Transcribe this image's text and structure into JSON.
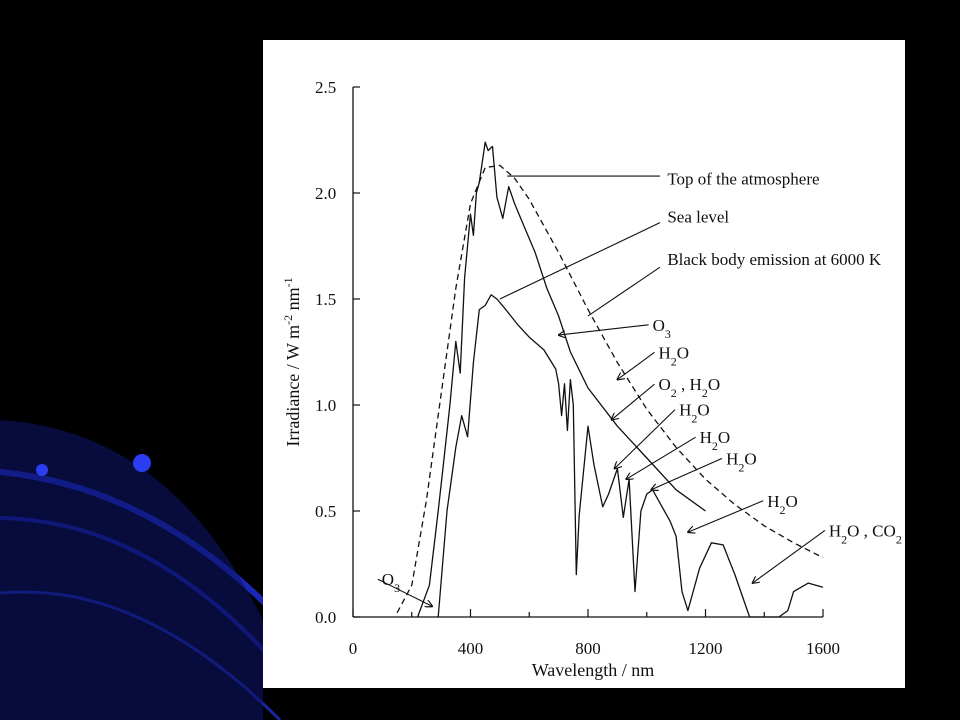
{
  "slide": {
    "background": "#000000",
    "decoration_color": "#1f2fd6"
  },
  "chart_data": {
    "type": "line",
    "title": "",
    "xlabel": "Wavelength / nm",
    "ylabel_parts": [
      "Irradiance / W m",
      "-2",
      " nm",
      "-1"
    ],
    "xlim": [
      0,
      1600
    ],
    "ylim": [
      0,
      2.5
    ],
    "xticks": [
      0,
      400,
      800,
      1200,
      1600
    ],
    "xtick_labels": [
      "0",
      "400",
      "800",
      "1200",
      "1600"
    ],
    "yticks": [
      0,
      0.5,
      1.0,
      1.5,
      2.0,
      2.5
    ],
    "ytick_labels": [
      "0.0",
      "0.5",
      "1.0",
      "1.5",
      "2.0",
      "2.5"
    ],
    "grid": false,
    "legend": "none",
    "series": [
      {
        "name": "Black body emission at 6000 K",
        "style": "dashed",
        "x": [
          150,
          200,
          250,
          300,
          350,
          400,
          450,
          500,
          550,
          600,
          700,
          800,
          900,
          1000,
          1100,
          1200,
          1300,
          1400,
          1500,
          1600
        ],
        "y": [
          0.02,
          0.15,
          0.55,
          1.05,
          1.55,
          1.95,
          2.12,
          2.13,
          2.07,
          1.97,
          1.72,
          1.45,
          1.2,
          0.98,
          0.8,
          0.65,
          0.53,
          0.43,
          0.35,
          0.28
        ]
      },
      {
        "name": "Top of the atmosphere",
        "style": "solid",
        "x": [
          220,
          260,
          290,
          310,
          330,
          350,
          365,
          380,
          400,
          410,
          420,
          430,
          450,
          460,
          475,
          490,
          510,
          530,
          550,
          580,
          620,
          660,
          700,
          740,
          800,
          900,
          1000,
          1100,
          1200
        ],
        "y": [
          0.0,
          0.15,
          0.5,
          0.75,
          1.0,
          1.3,
          1.15,
          1.6,
          1.9,
          1.8,
          2.0,
          2.05,
          2.24,
          2.2,
          2.22,
          1.98,
          1.88,
          2.03,
          1.95,
          1.85,
          1.72,
          1.55,
          1.42,
          1.25,
          1.08,
          0.9,
          0.75,
          0.6,
          0.5
        ]
      },
      {
        "name": "Sea level",
        "style": "solid",
        "x": [
          290,
          320,
          350,
          370,
          390,
          410,
          430,
          450,
          470,
          490,
          520,
          560,
          600,
          650,
          690,
          700,
          710,
          720,
          730,
          740,
          750,
          760,
          770,
          800,
          820,
          850,
          870,
          900,
          920,
          940,
          960,
          980,
          1000,
          1020,
          1040,
          1080,
          1100,
          1120,
          1140,
          1180,
          1220,
          1260,
          1300,
          1350,
          1400,
          1450,
          1480,
          1500,
          1550,
          1600
        ],
        "y": [
          0.0,
          0.5,
          0.8,
          0.95,
          0.85,
          1.2,
          1.45,
          1.47,
          1.52,
          1.5,
          1.45,
          1.38,
          1.32,
          1.26,
          1.17,
          1.1,
          0.95,
          1.1,
          0.88,
          1.12,
          1.0,
          0.2,
          0.48,
          0.9,
          0.72,
          0.52,
          0.58,
          0.7,
          0.47,
          0.65,
          0.12,
          0.5,
          0.58,
          0.6,
          0.55,
          0.45,
          0.38,
          0.12,
          0.03,
          0.23,
          0.35,
          0.34,
          0.2,
          0.0,
          0.0,
          0.0,
          0.03,
          0.12,
          0.16,
          0.14
        ]
      }
    ],
    "annotations": [
      {
        "parts": [
          "O",
          "3"
        ],
        "sub": true,
        "text_x": 98,
        "text_y": 0.15,
        "arrow_x": 270,
        "arrow_y": 0.05
      },
      {
        "parts": [
          "Top of the atmosphere"
        ],
        "sub": false,
        "text_x": 1070,
        "text_y": 2.04,
        "line_from_x": 1045,
        "line_from_y": 2.08,
        "line_to_x": 525,
        "line_to_y": 2.08
      },
      {
        "parts": [
          "Sea level"
        ],
        "sub": false,
        "text_x": 1070,
        "text_y": 1.86,
        "line_from_x": 1045,
        "line_from_y": 1.86,
        "line_to_x": 500,
        "line_to_y": 1.5
      },
      {
        "parts": [
          "Black body emission at 6000 K"
        ],
        "sub": false,
        "text_x": 1070,
        "text_y": 1.66,
        "line_from_x": 1045,
        "line_from_y": 1.65,
        "line_to_x": 800,
        "line_to_y": 1.42
      },
      {
        "parts": [
          "O",
          "3"
        ],
        "sub": true,
        "text_x": 1020,
        "text_y": 1.35,
        "arrow_x": 700,
        "arrow_y": 1.33
      },
      {
        "parts": [
          "H",
          "2",
          "O"
        ],
        "sub": true,
        "text_x": 1040,
        "text_y": 1.22,
        "arrow_x": 900,
        "arrow_y": 1.12
      },
      {
        "parts": [
          "O",
          "2",
          " , H",
          "2",
          "O"
        ],
        "sub": true,
        "text_x": 1040,
        "text_y": 1.07,
        "arrow_x": 880,
        "arrow_y": 0.93
      },
      {
        "parts": [
          "H",
          "2",
          "O"
        ],
        "sub": true,
        "text_x": 1110,
        "text_y": 0.95,
        "arrow_x": 890,
        "arrow_y": 0.7
      },
      {
        "parts": [
          "H",
          "2",
          "O"
        ],
        "sub": true,
        "text_x": 1180,
        "text_y": 0.82,
        "arrow_x": 930,
        "arrow_y": 0.65
      },
      {
        "parts": [
          "H",
          "2",
          "O"
        ],
        "sub": true,
        "text_x": 1270,
        "text_y": 0.72,
        "arrow_x": 1015,
        "arrow_y": 0.6
      },
      {
        "parts": [
          "H",
          "2",
          "O"
        ],
        "sub": true,
        "text_x": 1410,
        "text_y": 0.52,
        "arrow_x": 1140,
        "arrow_y": 0.4
      },
      {
        "parts": [
          "H",
          "2",
          "O , CO",
          "2"
        ],
        "sub": true,
        "text_x": 1620,
        "text_y": 0.38,
        "arrow_x": 1360,
        "arrow_y": 0.16
      }
    ]
  }
}
